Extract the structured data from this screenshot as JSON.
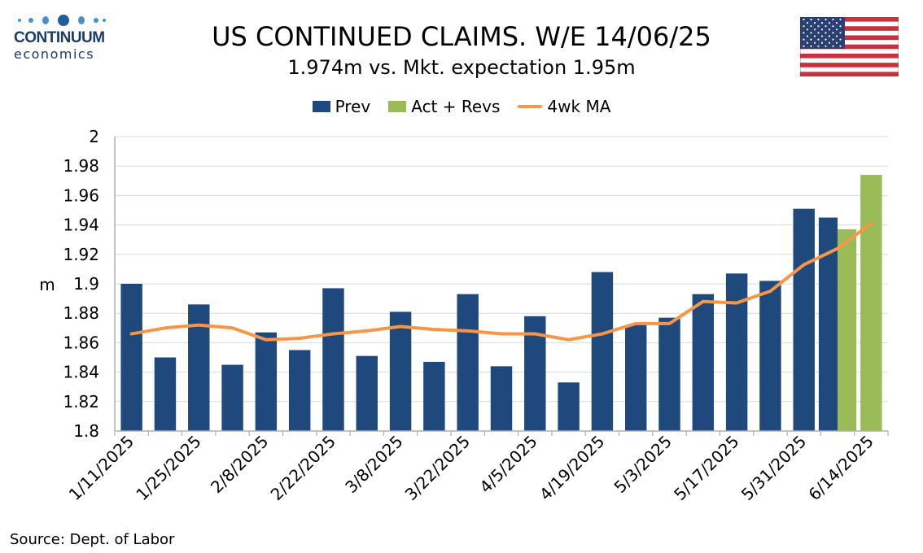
{
  "brand": {
    "name": "CONTINUUM",
    "sub": "economics",
    "color": "#1e3a6b"
  },
  "flag": {
    "icon": "us-flag-icon"
  },
  "source": "Source: Dept. of Labor",
  "colors": {
    "prev": "#1f497d",
    "act": "#9bbb59",
    "ma": "#f79646",
    "grid": "#d9d9d9",
    "axis": "#b0b0b0"
  },
  "chart_data": {
    "type": "bar",
    "title": "US CONTINUED CLAIMS. W/E 14/06/25",
    "subtitle": "1.974m vs. Mkt. expectation 1.95m",
    "ylabel": "m",
    "ylim": [
      1.8,
      2.0
    ],
    "yticks": [
      "1.8",
      "1.82",
      "1.84",
      "1.86",
      "1.88",
      "1.9",
      "1.92",
      "1.94",
      "1.96",
      "1.98",
      "2"
    ],
    "yticks_values": [
      1.8,
      1.82,
      1.84,
      1.86,
      1.88,
      1.9,
      1.92,
      1.94,
      1.96,
      1.98,
      2.0
    ],
    "grid": true,
    "legend_position": "top-center",
    "categories": [
      "1/11/2025",
      "1/18/2025",
      "1/25/2025",
      "2/1/2025",
      "2/8/2025",
      "2/15/2025",
      "2/22/2025",
      "3/1/2025",
      "3/8/2025",
      "3/15/2025",
      "3/22/2025",
      "3/29/2025",
      "4/5/2025",
      "4/12/2025",
      "4/19/2025",
      "4/26/2025",
      "5/3/2025",
      "5/10/2025",
      "5/17/2025",
      "5/24/2025",
      "5/31/2025",
      "6/7/2025",
      "6/14/2025"
    ],
    "xtick_labels": [
      "1/11/2025",
      "1/25/2025",
      "2/8/2025",
      "2/22/2025",
      "3/8/2025",
      "3/22/2025",
      "4/5/2025",
      "4/19/2025",
      "5/3/2025",
      "5/17/2025",
      "5/31/2025",
      "6/14/2025"
    ],
    "series": [
      {
        "name": "Prev",
        "kind": "bar",
        "values": [
          1.9,
          1.85,
          1.886,
          1.845,
          1.867,
          1.855,
          1.897,
          1.851,
          1.881,
          1.847,
          1.893,
          1.844,
          1.878,
          1.833,
          1.908,
          1.872,
          1.877,
          1.893,
          1.907,
          1.902,
          1.951,
          1.945,
          null
        ]
      },
      {
        "name": "Act + Revs",
        "kind": "bar",
        "values": [
          null,
          null,
          null,
          null,
          null,
          null,
          null,
          null,
          null,
          null,
          null,
          null,
          null,
          null,
          null,
          null,
          null,
          null,
          null,
          null,
          null,
          1.937,
          1.974
        ]
      },
      {
        "name": "4wk MA",
        "kind": "line",
        "values": [
          1.866,
          1.87,
          1.872,
          1.87,
          1.862,
          1.863,
          1.866,
          1.868,
          1.871,
          1.869,
          1.868,
          1.866,
          1.866,
          1.862,
          1.866,
          1.873,
          1.873,
          1.888,
          1.887,
          1.895,
          1.913,
          1.924,
          1.941
        ]
      }
    ]
  }
}
